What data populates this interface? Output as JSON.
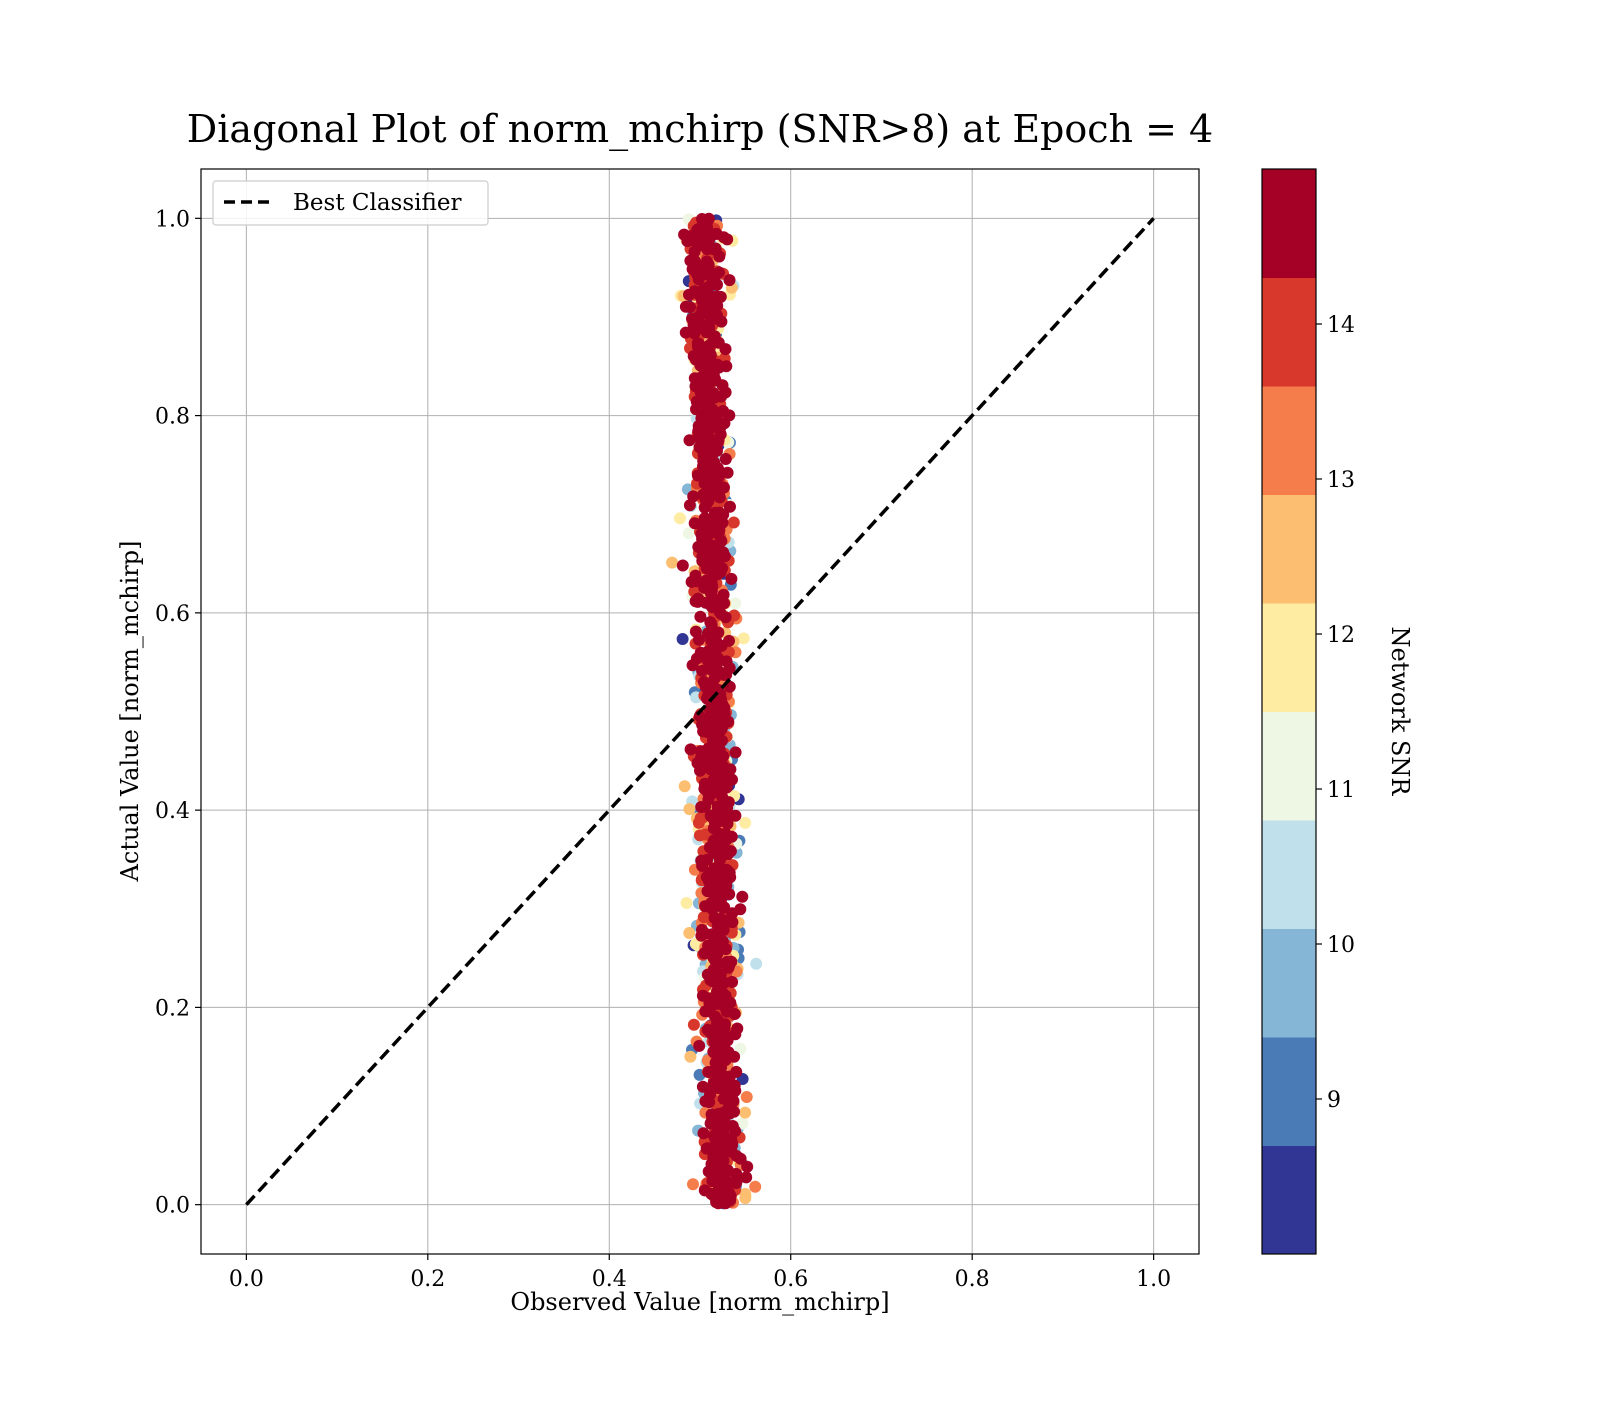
{
  "chart_data": {
    "type": "scatter",
    "title": "Diagonal Plot of norm_mchirp (SNR>8) at Epoch = 4",
    "xlabel": "Observed Value [norm_mchirp]",
    "ylabel": "Actual Value [norm_mchirp]",
    "xlim": [
      -0.05,
      1.05
    ],
    "ylim": [
      -0.05,
      1.05
    ],
    "xticks": [
      "0.0",
      "0.2",
      "0.4",
      "0.6",
      "0.8",
      "1.0"
    ],
    "yticks": [
      "0.0",
      "0.2",
      "0.4",
      "0.6",
      "0.8",
      "1.0"
    ],
    "grid": true,
    "legend": {
      "placement": "top-left",
      "entries": [
        {
          "label": "Best Classifier",
          "style": "dashed",
          "color": "#000000"
        }
      ]
    },
    "reference_line": {
      "name": "Best Classifier",
      "x": [
        0.0,
        1.0
      ],
      "y": [
        0.0,
        1.0
      ]
    },
    "scatter_summary": {
      "description_values": {
        "observed_center_at_actual_0": 0.525,
        "observed_center_at_actual_1": 0.505,
        "observed_spread": 0.02,
        "actual_range": [
          0.0,
          1.0
        ]
      },
      "color_by": "Network SNR"
    },
    "colorbar": {
      "label": "Network SNR",
      "range": [
        8.0,
        15.0
      ],
      "ticks": [
        "9",
        "10",
        "11",
        "12",
        "13",
        "14"
      ],
      "levels": [
        {
          "from": 8.0,
          "to": 8.7,
          "color": "#313695"
        },
        {
          "from": 8.7,
          "to": 9.4,
          "color": "#4a7bb7"
        },
        {
          "from": 9.4,
          "to": 10.1,
          "color": "#85b6d6"
        },
        {
          "from": 10.1,
          "to": 10.8,
          "color": "#c0e1ec"
        },
        {
          "from": 10.8,
          "to": 11.5,
          "color": "#eef7e3"
        },
        {
          "from": 11.5,
          "to": 12.2,
          "color": "#feeca3"
        },
        {
          "from": 12.2,
          "to": 12.9,
          "color": "#fcbf72"
        },
        {
          "from": 12.9,
          "to": 13.6,
          "color": "#f57d4b"
        },
        {
          "from": 13.6,
          "to": 14.3,
          "color": "#d8382b"
        },
        {
          "from": 14.3,
          "to": 15.0,
          "color": "#a50026"
        }
      ]
    }
  }
}
